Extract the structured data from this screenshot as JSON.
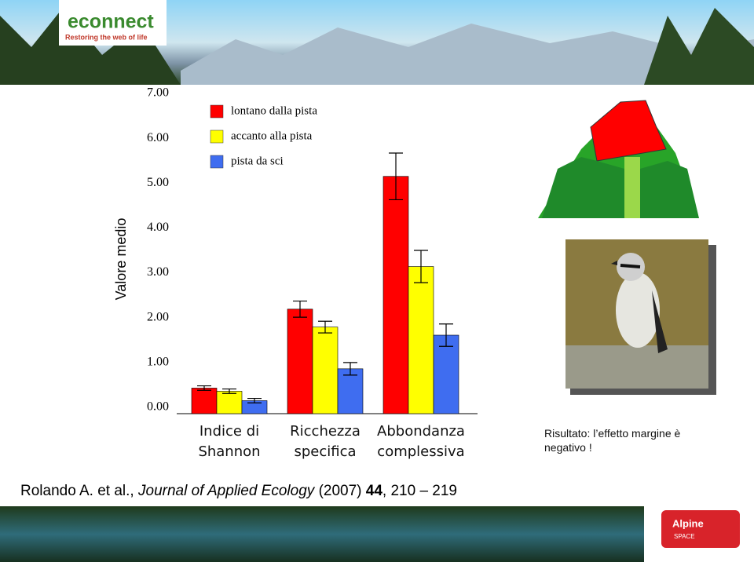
{
  "chart_data": {
    "type": "bar",
    "y_label": "Valore medio",
    "categories": [
      "Indice di Shannon",
      "Ricchezza specifica",
      "Abbondanza complessiva"
    ],
    "series": [
      {
        "name": "lontano dalla pista",
        "color": "#ff0000",
        "values": [
          0.57,
          2.33,
          5.29
        ],
        "errors": [
          0.05,
          0.18,
          0.52
        ]
      },
      {
        "name": "accanto alla pista",
        "color": "#ffff00",
        "values": [
          0.5,
          1.93,
          3.28
        ],
        "errors": [
          0.05,
          0.13,
          0.36
        ]
      },
      {
        "name": "pista da sci",
        "color": "#3f6df0",
        "values": [
          0.29,
          1.0,
          1.75
        ],
        "errors": [
          0.05,
          0.14,
          0.25
        ]
      }
    ],
    "ylim": [
      0,
      7
    ],
    "yticks": [
      {
        "value": 0,
        "label": "0.00"
      },
      {
        "value": 1,
        "label": "1.00"
      },
      {
        "value": 2,
        "label": "2.00"
      },
      {
        "value": 3,
        "label": "3.00"
      },
      {
        "value": 4,
        "label": "4.00"
      },
      {
        "value": 5,
        "label": "5.00"
      },
      {
        "value": 6,
        "label": "6.00"
      },
      {
        "value": 7,
        "label": "7.00"
      }
    ],
    "grid": false
  },
  "logo": {
    "name": "econnect",
    "tagline": "Restoring the web of life"
  },
  "result": "Risultato: l’effetto margine è negativo !",
  "citation": {
    "authors": "Rolando A. et al.,",
    "journal": "Journal of Applied Ecology",
    "year": "(2007)",
    "volume": "44",
    "pages": ", 210 – 219"
  },
  "footer_logo": {
    "name": "Alpine",
    "sub": "SPACE"
  }
}
